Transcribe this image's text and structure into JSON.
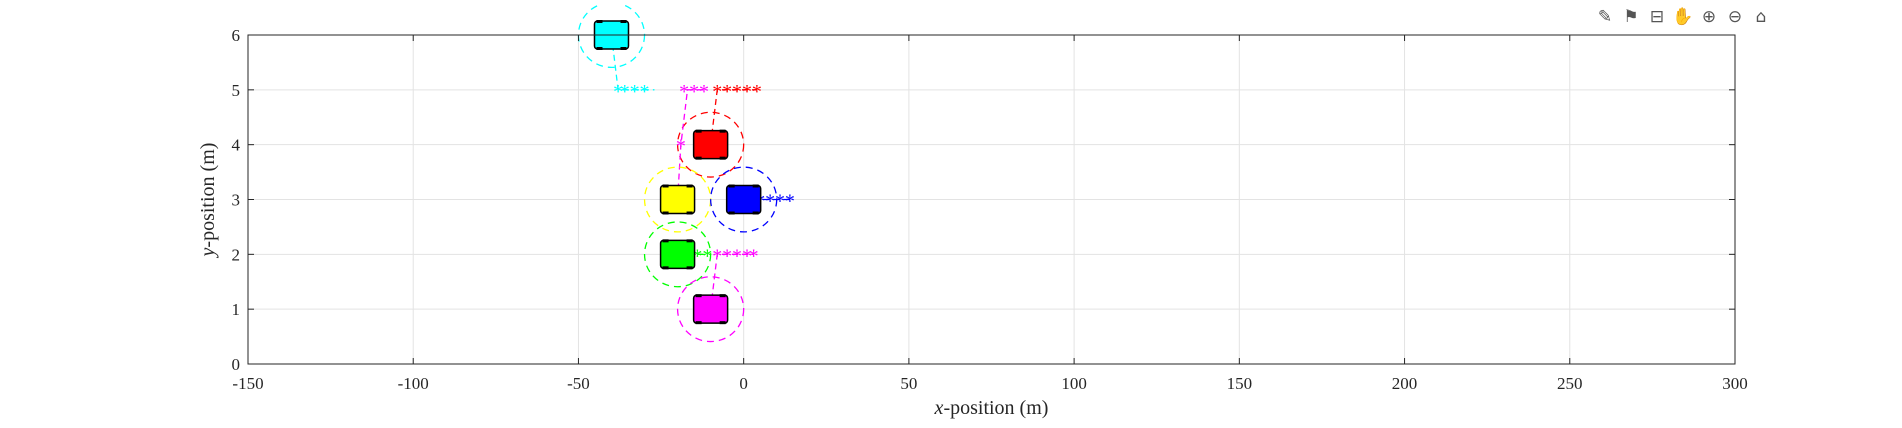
{
  "toolbar": {
    "icons": [
      "brush-icon",
      "datatip-icon",
      "restore-view-icon",
      "pan-hand-icon",
      "zoom-in-icon",
      "zoom-out-icon",
      "home-icon"
    ]
  },
  "chart_data": {
    "type": "scatter",
    "xlabel_var": "x",
    "xlabel_rest": "-position (m)",
    "ylabel_var": "y",
    "ylabel_rest": "-position (m)",
    "xlim": [
      -150,
      300
    ],
    "ylim": [
      0,
      6
    ],
    "xticks": [
      -150,
      -100,
      -50,
      0,
      50,
      100,
      150,
      200,
      250,
      300
    ],
    "yticks": [
      0,
      1,
      2,
      3,
      4,
      5,
      6
    ],
    "grid": true,
    "vehicles": [
      {
        "color": "#00ffff",
        "x": -40,
        "y": 6,
        "radius": 10,
        "path": [
          [
            -40,
            6
          ],
          [
            -38,
            5
          ],
          [
            -36,
            5
          ],
          [
            -33,
            5
          ],
          [
            -30,
            5
          ],
          [
            -27,
            5
          ]
        ],
        "stars": [
          [
            -40,
            6
          ],
          [
            -38,
            5
          ],
          [
            -36,
            5
          ],
          [
            -33,
            5
          ],
          [
            -30,
            5
          ]
        ]
      },
      {
        "color": "#ff0000",
        "x": -10,
        "y": 4,
        "radius": 10,
        "path": [
          [
            -10,
            4
          ],
          [
            -8,
            5
          ],
          [
            -5,
            5
          ],
          [
            -2,
            5
          ],
          [
            1,
            5
          ],
          [
            4,
            5
          ]
        ],
        "stars": [
          [
            -8,
            5
          ],
          [
            -5,
            5
          ],
          [
            -2,
            5
          ],
          [
            1,
            5
          ],
          [
            4,
            5
          ]
        ]
      },
      {
        "color": "#ffff00",
        "x": -20,
        "y": 3,
        "radius": 10,
        "path": [
          [
            -20,
            3
          ],
          [
            -19,
            4
          ],
          [
            -17,
            5
          ],
          [
            -14,
            5
          ],
          [
            -11,
            5
          ]
        ],
        "stars": [
          [
            -20,
            3
          ],
          [
            -19,
            4
          ],
          [
            -18,
            5
          ],
          [
            -15,
            5
          ],
          [
            -12,
            5
          ]
        ],
        "starColor": "#ff00ff"
      },
      {
        "color": "#0000ff",
        "x": 0,
        "y": 3,
        "radius": 10,
        "path": [
          [
            0,
            3
          ],
          [
            5,
            3
          ],
          [
            8,
            3
          ],
          [
            11,
            3
          ],
          [
            14,
            3
          ]
        ],
        "stars": [
          [
            5,
            3
          ],
          [
            8,
            3
          ],
          [
            11,
            3
          ],
          [
            14,
            3
          ]
        ]
      },
      {
        "color": "#00ff00",
        "x": -20,
        "y": 2,
        "radius": 10,
        "path": [
          [
            -20,
            2
          ],
          [
            -14,
            2
          ],
          [
            -11,
            2
          ]
        ],
        "stars": [
          [
            -14,
            2
          ],
          [
            -11,
            2
          ]
        ]
      },
      {
        "color": "#ff00ff",
        "x": -10,
        "y": 1,
        "radius": 10,
        "path": [
          [
            -10,
            1
          ],
          [
            -8,
            2
          ],
          [
            -5,
            2
          ],
          [
            -2,
            2
          ],
          [
            1,
            2
          ],
          [
            3,
            2
          ]
        ],
        "stars": [
          [
            -8,
            2
          ],
          [
            -5,
            2
          ],
          [
            -2,
            2
          ],
          [
            1,
            2
          ],
          [
            3,
            2
          ]
        ]
      }
    ]
  }
}
